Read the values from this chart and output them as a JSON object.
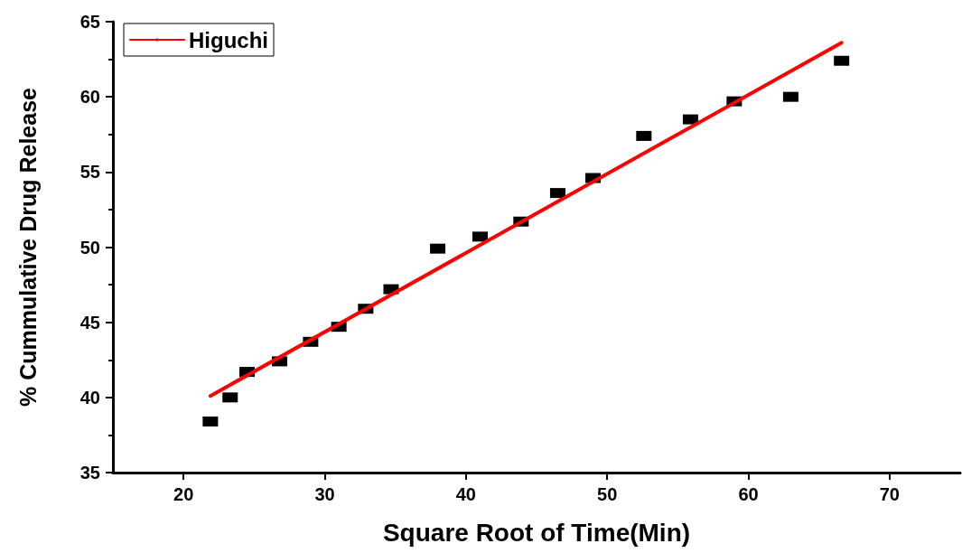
{
  "chart_data": {
    "type": "scatter",
    "xlabel": "Square Root of Time(Min)",
    "ylabel": "% Cummulative Drug Release",
    "xlim": [
      15,
      75
    ],
    "xticks": [
      20,
      30,
      40,
      50,
      60,
      70
    ],
    "ylim": [
      35,
      65
    ],
    "yticks": [
      35,
      40,
      45,
      50,
      55,
      60,
      65
    ],
    "grid": false,
    "legend": "top left",
    "series": [
      {
        "marker": "square",
        "color": "#000000",
        "x": [
          21.9,
          23.3,
          24.5,
          26.8,
          29.0,
          31.0,
          32.9,
          34.7,
          38.0,
          41.0,
          43.9,
          46.5,
          49.0,
          52.6,
          55.9,
          59.0,
          63.0,
          66.6
        ],
        "values": [
          38.4,
          40.0,
          41.7,
          42.4,
          43.7,
          44.7,
          45.9,
          47.2,
          49.9,
          50.7,
          51.7,
          53.6,
          54.6,
          57.4,
          58.5,
          59.7,
          60.0,
          62.4
        ]
      },
      {
        "type": "line",
        "name": "Higuchi",
        "marker": "none",
        "line_style": "solid",
        "color": "#ff0000",
        "x": [
          21.9,
          66.6
        ],
        "values": [
          40.1,
          63.6
        ]
      }
    ]
  }
}
